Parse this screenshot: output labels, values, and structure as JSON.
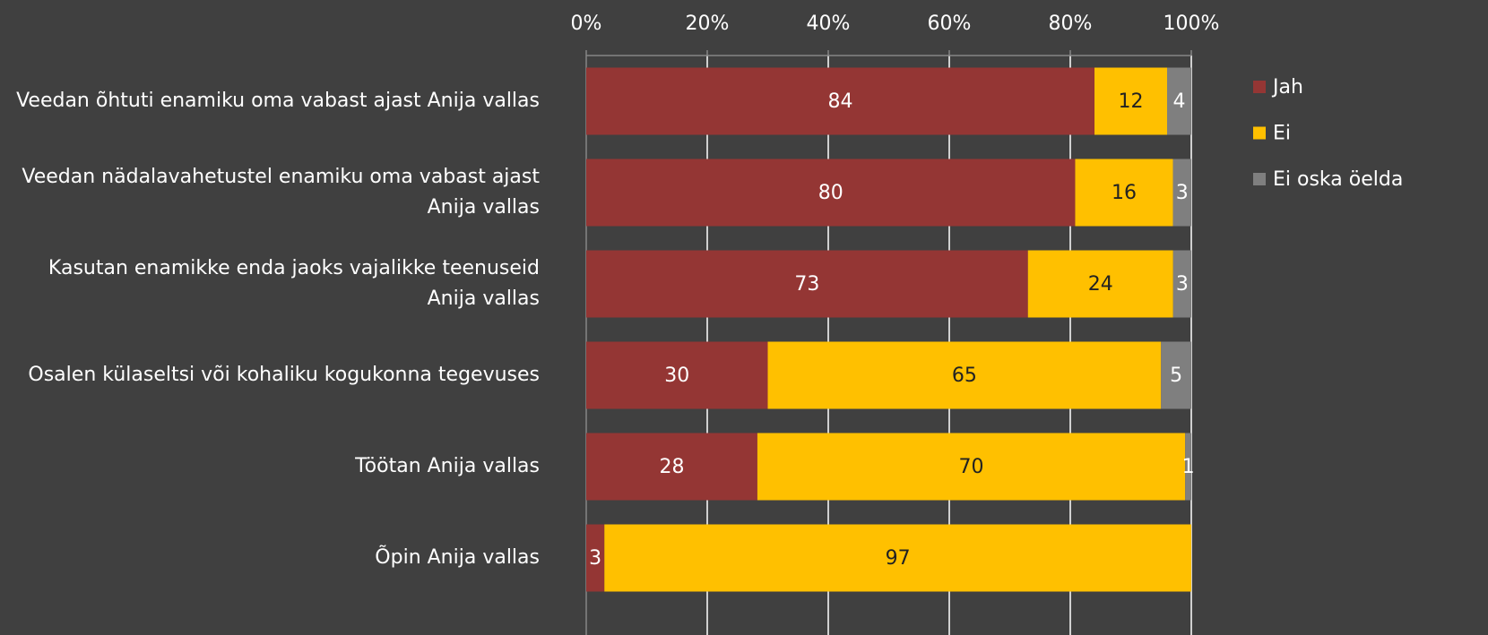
{
  "chart_data": {
    "type": "bar",
    "orientation": "horizontal",
    "stack": "percent",
    "categories": [
      "Veedan õhtuti enamiku oma vabast ajast Anija vallas",
      "Veedan nädalavahetustel enamiku oma vabast ajast\nAnija vallas",
      "Kasutan enamikke enda jaoks vajalikke teenuseid\nAnija vallas",
      "Osalen külaseltsi või kohaliku kogukonna tegevuses",
      "Töötan Anija vallas",
      "Õpin Anija vallas"
    ],
    "series": [
      {
        "name": "Jah",
        "color": "#943634",
        "values": [
          84,
          80,
          73,
          30,
          28,
          3
        ]
      },
      {
        "name": "Ei",
        "color": "#ffc000",
        "values": [
          12,
          16,
          24,
          65,
          70,
          97
        ]
      },
      {
        "name": "Ei oska öelda",
        "color": "#7f7f7f",
        "values": [
          4,
          3,
          3,
          5,
          1,
          null
        ]
      }
    ],
    "xlim": [
      0,
      100
    ],
    "xticks": [
      {
        "value": 0,
        "label": "0%"
      },
      {
        "value": 20,
        "label": "20%"
      },
      {
        "value": 40,
        "label": "40%"
      },
      {
        "value": 60,
        "label": "60%"
      },
      {
        "value": 80,
        "label": "80%"
      },
      {
        "value": 100,
        "label": "100%"
      }
    ],
    "grid": true,
    "legend": "right"
  }
}
